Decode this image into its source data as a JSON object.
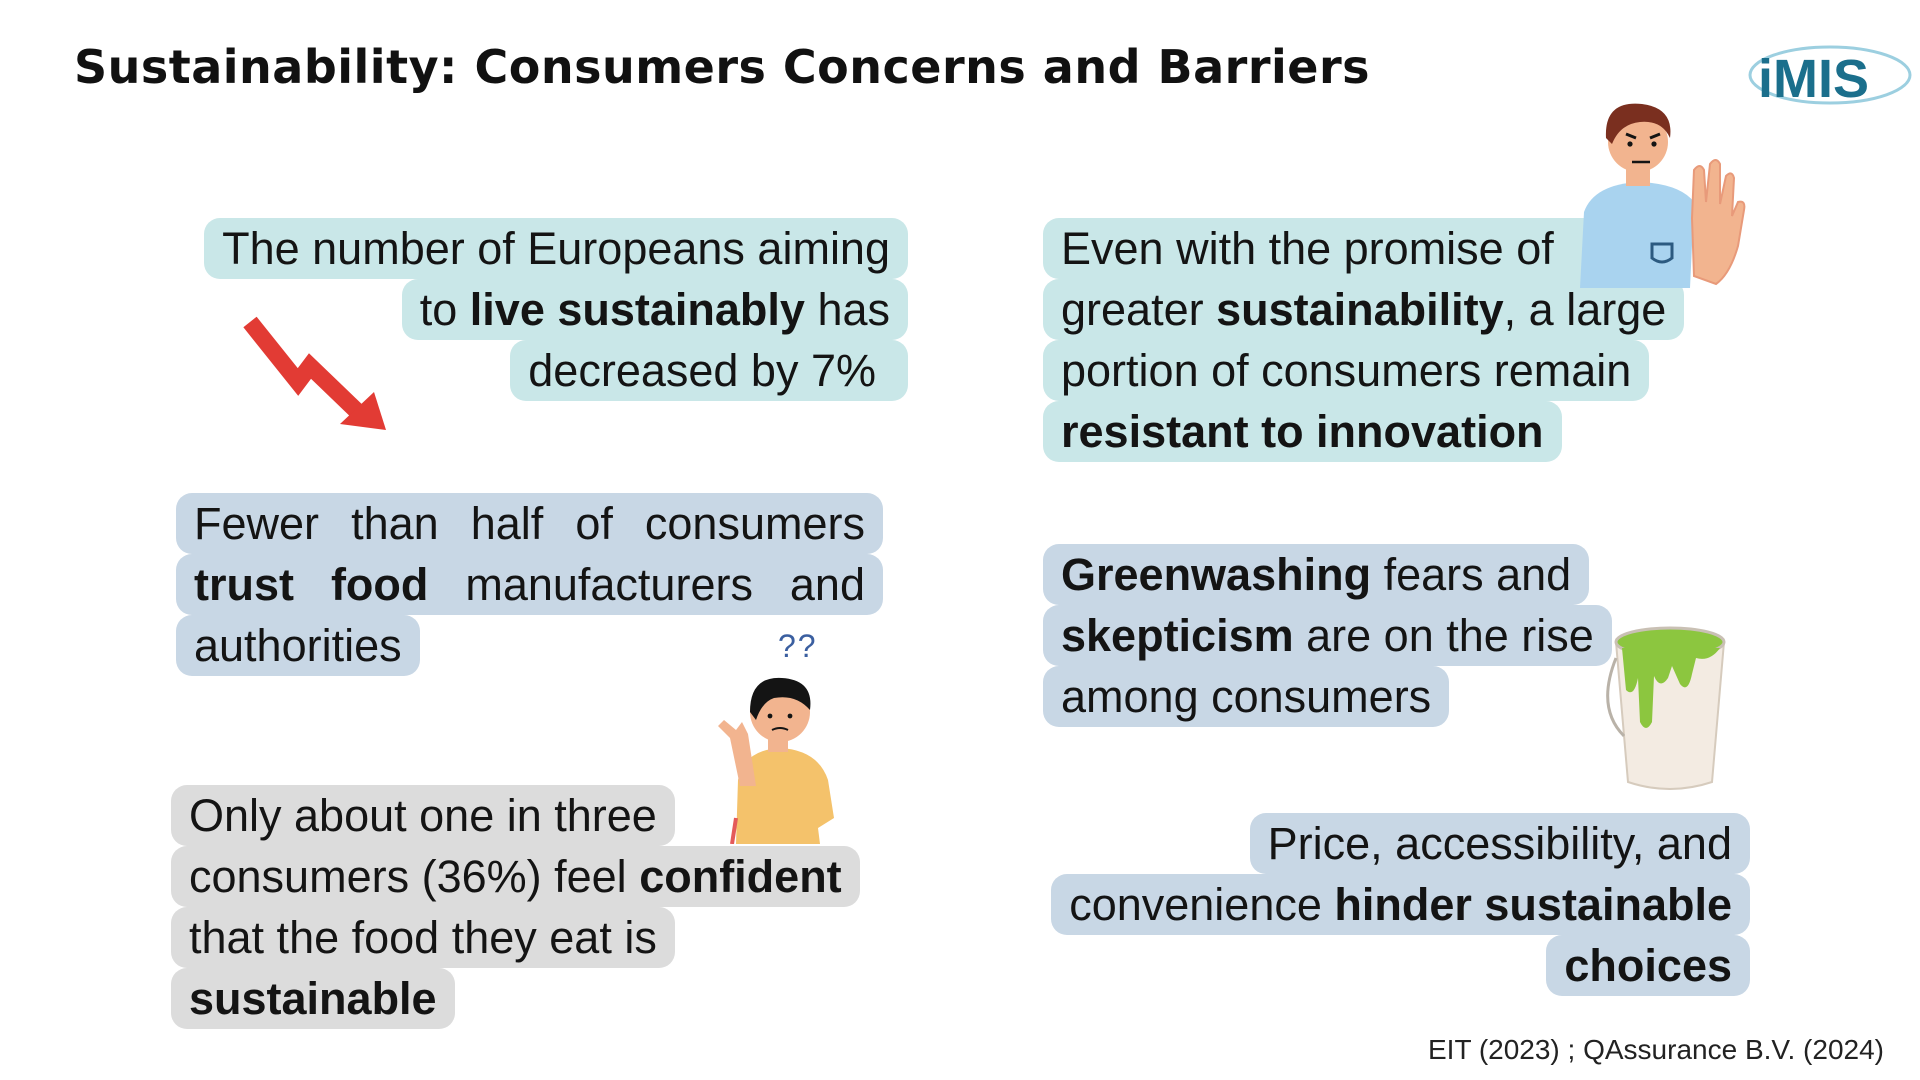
{
  "title": "Sustainability: Consumers Concerns and Barriers",
  "logo": {
    "text": "iMIS",
    "color": "#1b6f8c"
  },
  "cards": {
    "c1": {
      "l1": "The number of Europeans aiming",
      "l2a": "to ",
      "l2b": "live sustainably",
      "l2c": " has",
      "l3": "decreased by 7%"
    },
    "c2": {
      "l1": [
        "Fewer",
        "than",
        "half",
        "of",
        "consumers"
      ],
      "l2": [
        "trust",
        "food",
        "manufacturers",
        "and"
      ],
      "l3": "authorities"
    },
    "c3": {
      "l1": "Only about one in three",
      "l2a": "consumers (36%) feel ",
      "l2b": "confident",
      "l3": "that the food they eat is",
      "l4": "sustainable"
    },
    "c4": {
      "l1": "Even with the promise of",
      "l2a": "greater ",
      "l2b": "sustainability",
      "l2c": ", a large",
      "l3": "portion of consumers remain",
      "l4": "resistant to innovation"
    },
    "c5": {
      "l1a": "Greenwashing",
      "l1b": " fears and",
      "l2a": "skepticism",
      "l2b": " are on the rise",
      "l3": "among consumers"
    },
    "c6": {
      "l1": "Price, accessibility, and",
      "l2a": "convenience ",
      "l2b": "hinder sustainable",
      "l3": "choices"
    }
  },
  "question_marks": "??",
  "source": "EIT (2023) ; QAssurance B.V. (2024)",
  "colors": {
    "teal": "#c9e7e8",
    "blue": "#c8d7e5",
    "grey": "#dcdcdc",
    "arrow": "#e23b34",
    "paint": "#8cc63f"
  },
  "icons": [
    "trend-down-arrow-icon",
    "stop-hand-person-icon",
    "confused-person-icon",
    "paint-bucket-icon"
  ]
}
